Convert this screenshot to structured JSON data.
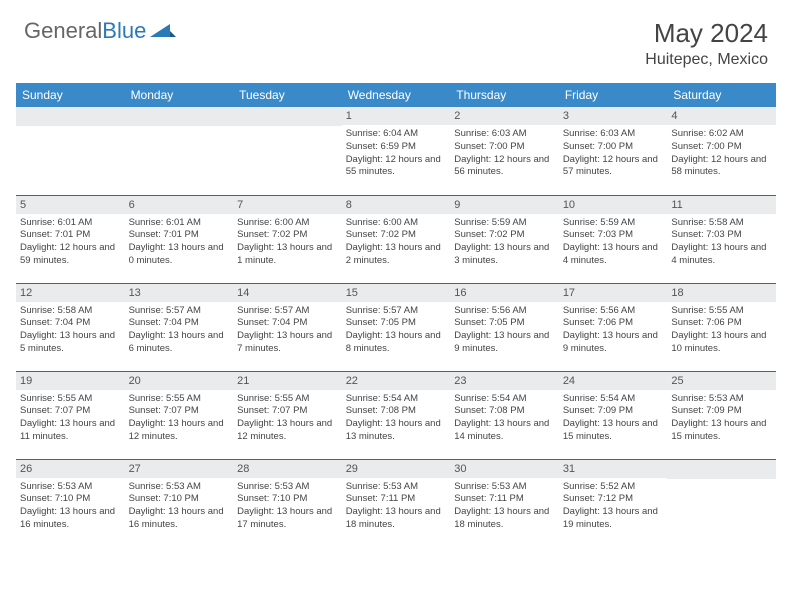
{
  "brand": {
    "part1": "General",
    "part2": "Blue"
  },
  "title": {
    "month_year": "May 2024",
    "location": "Huitepec, Mexico"
  },
  "colors": {
    "header_bg": "#3a8ac9",
    "header_text": "#ffffff",
    "row_divider": "#2a6aa0",
    "daynum_bg": "#e9ebec",
    "body_text": "#444444",
    "brand_gray": "#666666",
    "brand_blue": "#2a7ab8",
    "page_bg": "#ffffff"
  },
  "typography": {
    "title_size_pt": 20,
    "location_size_pt": 12,
    "weekday_size_pt": 9,
    "daynum_size_pt": 8,
    "body_size_pt": 7
  },
  "weekdays": [
    "Sunday",
    "Monday",
    "Tuesday",
    "Wednesday",
    "Thursday",
    "Friday",
    "Saturday"
  ],
  "labels": {
    "sunrise": "Sunrise:",
    "sunset": "Sunset:",
    "daylight": "Daylight:"
  },
  "weeks": [
    [
      null,
      null,
      null,
      {
        "d": "1",
        "sunrise": "6:04 AM",
        "sunset": "6:59 PM",
        "daylight": "12 hours and 55 minutes."
      },
      {
        "d": "2",
        "sunrise": "6:03 AM",
        "sunset": "7:00 PM",
        "daylight": "12 hours and 56 minutes."
      },
      {
        "d": "3",
        "sunrise": "6:03 AM",
        "sunset": "7:00 PM",
        "daylight": "12 hours and 57 minutes."
      },
      {
        "d": "4",
        "sunrise": "6:02 AM",
        "sunset": "7:00 PM",
        "daylight": "12 hours and 58 minutes."
      }
    ],
    [
      {
        "d": "5",
        "sunrise": "6:01 AM",
        "sunset": "7:01 PM",
        "daylight": "12 hours and 59 minutes."
      },
      {
        "d": "6",
        "sunrise": "6:01 AM",
        "sunset": "7:01 PM",
        "daylight": "13 hours and 0 minutes."
      },
      {
        "d": "7",
        "sunrise": "6:00 AM",
        "sunset": "7:02 PM",
        "daylight": "13 hours and 1 minute."
      },
      {
        "d": "8",
        "sunrise": "6:00 AM",
        "sunset": "7:02 PM",
        "daylight": "13 hours and 2 minutes."
      },
      {
        "d": "9",
        "sunrise": "5:59 AM",
        "sunset": "7:02 PM",
        "daylight": "13 hours and 3 minutes."
      },
      {
        "d": "10",
        "sunrise": "5:59 AM",
        "sunset": "7:03 PM",
        "daylight": "13 hours and 4 minutes."
      },
      {
        "d": "11",
        "sunrise": "5:58 AM",
        "sunset": "7:03 PM",
        "daylight": "13 hours and 4 minutes."
      }
    ],
    [
      {
        "d": "12",
        "sunrise": "5:58 AM",
        "sunset": "7:04 PM",
        "daylight": "13 hours and 5 minutes."
      },
      {
        "d": "13",
        "sunrise": "5:57 AM",
        "sunset": "7:04 PM",
        "daylight": "13 hours and 6 minutes."
      },
      {
        "d": "14",
        "sunrise": "5:57 AM",
        "sunset": "7:04 PM",
        "daylight": "13 hours and 7 minutes."
      },
      {
        "d": "15",
        "sunrise": "5:57 AM",
        "sunset": "7:05 PM",
        "daylight": "13 hours and 8 minutes."
      },
      {
        "d": "16",
        "sunrise": "5:56 AM",
        "sunset": "7:05 PM",
        "daylight": "13 hours and 9 minutes."
      },
      {
        "d": "17",
        "sunrise": "5:56 AM",
        "sunset": "7:06 PM",
        "daylight": "13 hours and 9 minutes."
      },
      {
        "d": "18",
        "sunrise": "5:55 AM",
        "sunset": "7:06 PM",
        "daylight": "13 hours and 10 minutes."
      }
    ],
    [
      {
        "d": "19",
        "sunrise": "5:55 AM",
        "sunset": "7:07 PM",
        "daylight": "13 hours and 11 minutes."
      },
      {
        "d": "20",
        "sunrise": "5:55 AM",
        "sunset": "7:07 PM",
        "daylight": "13 hours and 12 minutes."
      },
      {
        "d": "21",
        "sunrise": "5:55 AM",
        "sunset": "7:07 PM",
        "daylight": "13 hours and 12 minutes."
      },
      {
        "d": "22",
        "sunrise": "5:54 AM",
        "sunset": "7:08 PM",
        "daylight": "13 hours and 13 minutes."
      },
      {
        "d": "23",
        "sunrise": "5:54 AM",
        "sunset": "7:08 PM",
        "daylight": "13 hours and 14 minutes."
      },
      {
        "d": "24",
        "sunrise": "5:54 AM",
        "sunset": "7:09 PM",
        "daylight": "13 hours and 15 minutes."
      },
      {
        "d": "25",
        "sunrise": "5:53 AM",
        "sunset": "7:09 PM",
        "daylight": "13 hours and 15 minutes."
      }
    ],
    [
      {
        "d": "26",
        "sunrise": "5:53 AM",
        "sunset": "7:10 PM",
        "daylight": "13 hours and 16 minutes."
      },
      {
        "d": "27",
        "sunrise": "5:53 AM",
        "sunset": "7:10 PM",
        "daylight": "13 hours and 16 minutes."
      },
      {
        "d": "28",
        "sunrise": "5:53 AM",
        "sunset": "7:10 PM",
        "daylight": "13 hours and 17 minutes."
      },
      {
        "d": "29",
        "sunrise": "5:53 AM",
        "sunset": "7:11 PM",
        "daylight": "13 hours and 18 minutes."
      },
      {
        "d": "30",
        "sunrise": "5:53 AM",
        "sunset": "7:11 PM",
        "daylight": "13 hours and 18 minutes."
      },
      {
        "d": "31",
        "sunrise": "5:52 AM",
        "sunset": "7:12 PM",
        "daylight": "13 hours and 19 minutes."
      },
      null
    ]
  ]
}
